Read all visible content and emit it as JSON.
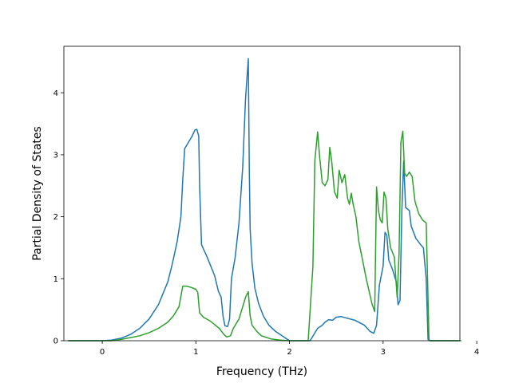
{
  "chart_data": {
    "type": "line",
    "title": "",
    "xlabel": "Frequency (THz)",
    "ylabel": "Partial Density of States",
    "xlim": [
      -0.41,
      3.82
    ],
    "ylim": [
      0,
      4.75
    ],
    "xticks": [
      0,
      1,
      2,
      3,
      4
    ],
    "yticks": [
      0,
      1,
      2,
      3,
      4
    ],
    "grid": false,
    "legend": "none",
    "series": [
      {
        "color": "#1f77b4",
        "points": [
          [
            -0.36,
            0
          ],
          [
            0.0,
            0
          ],
          [
            0.1,
            0.01
          ],
          [
            0.2,
            0.04
          ],
          [
            0.3,
            0.1
          ],
          [
            0.4,
            0.2
          ],
          [
            0.5,
            0.35
          ],
          [
            0.6,
            0.58
          ],
          [
            0.7,
            0.95
          ],
          [
            0.75,
            1.25
          ],
          [
            0.8,
            1.6
          ],
          [
            0.84,
            2.0
          ],
          [
            0.86,
            2.6
          ],
          [
            0.88,
            3.1
          ],
          [
            0.92,
            3.2
          ],
          [
            0.96,
            3.3
          ],
          [
            0.99,
            3.4
          ],
          [
            1.01,
            3.41
          ],
          [
            1.03,
            3.3
          ],
          [
            1.04,
            2.5
          ],
          [
            1.06,
            1.55
          ],
          [
            1.09,
            1.45
          ],
          [
            1.12,
            1.35
          ],
          [
            1.16,
            1.2
          ],
          [
            1.2,
            1.05
          ],
          [
            1.24,
            0.8
          ],
          [
            1.27,
            0.7
          ],
          [
            1.29,
            0.4
          ],
          [
            1.31,
            0.24
          ],
          [
            1.34,
            0.23
          ],
          [
            1.36,
            0.35
          ],
          [
            1.38,
            1.0
          ],
          [
            1.42,
            1.35
          ],
          [
            1.46,
            1.9
          ],
          [
            1.5,
            2.8
          ],
          [
            1.53,
            3.9
          ],
          [
            1.56,
            4.55
          ],
          [
            1.57,
            2.8
          ],
          [
            1.58,
            1.8
          ],
          [
            1.6,
            1.25
          ],
          [
            1.63,
            0.85
          ],
          [
            1.67,
            0.6
          ],
          [
            1.72,
            0.4
          ],
          [
            1.78,
            0.25
          ],
          [
            1.85,
            0.15
          ],
          [
            1.92,
            0.08
          ],
          [
            1.97,
            0.03
          ],
          [
            2.0,
            0
          ],
          [
            2.22,
            0
          ],
          [
            2.26,
            0.1
          ],
          [
            2.3,
            0.2
          ],
          [
            2.35,
            0.25
          ],
          [
            2.38,
            0.3
          ],
          [
            2.42,
            0.34
          ],
          [
            2.46,
            0.33
          ],
          [
            2.5,
            0.38
          ],
          [
            2.55,
            0.39
          ],
          [
            2.6,
            0.37
          ],
          [
            2.7,
            0.33
          ],
          [
            2.8,
            0.25
          ],
          [
            2.86,
            0.15
          ],
          [
            2.9,
            0.12
          ],
          [
            2.93,
            0.25
          ],
          [
            2.96,
            0.9
          ],
          [
            3.0,
            1.2
          ],
          [
            3.02,
            1.75
          ],
          [
            3.04,
            1.7
          ],
          [
            3.06,
            1.3
          ],
          [
            3.1,
            1.15
          ],
          [
            3.14,
            0.95
          ],
          [
            3.16,
            0.58
          ],
          [
            3.18,
            0.65
          ],
          [
            3.2,
            2.1
          ],
          [
            3.22,
            2.9
          ],
          [
            3.24,
            2.15
          ],
          [
            3.28,
            2.1
          ],
          [
            3.3,
            1.85
          ],
          [
            3.35,
            1.65
          ],
          [
            3.4,
            1.55
          ],
          [
            3.43,
            1.5
          ],
          [
            3.46,
            1.0
          ],
          [
            3.48,
            0.02
          ],
          [
            3.5,
            0
          ],
          [
            3.8,
            0
          ]
        ]
      },
      {
        "color": "#2ca02c",
        "points": [
          [
            -0.36,
            0
          ],
          [
            0.1,
            0
          ],
          [
            0.2,
            0.02
          ],
          [
            0.3,
            0.05
          ],
          [
            0.4,
            0.08
          ],
          [
            0.5,
            0.13
          ],
          [
            0.6,
            0.2
          ],
          [
            0.7,
            0.3
          ],
          [
            0.76,
            0.4
          ],
          [
            0.82,
            0.55
          ],
          [
            0.86,
            0.88
          ],
          [
            0.9,
            0.88
          ],
          [
            0.95,
            0.86
          ],
          [
            1.0,
            0.83
          ],
          [
            1.02,
            0.78
          ],
          [
            1.04,
            0.45
          ],
          [
            1.08,
            0.38
          ],
          [
            1.15,
            0.32
          ],
          [
            1.2,
            0.26
          ],
          [
            1.25,
            0.2
          ],
          [
            1.3,
            0.1
          ],
          [
            1.33,
            0.06
          ],
          [
            1.37,
            0.08
          ],
          [
            1.4,
            0.2
          ],
          [
            1.46,
            0.35
          ],
          [
            1.5,
            0.55
          ],
          [
            1.53,
            0.7
          ],
          [
            1.56,
            0.79
          ],
          [
            1.58,
            0.4
          ],
          [
            1.6,
            0.25
          ],
          [
            1.65,
            0.15
          ],
          [
            1.7,
            0.08
          ],
          [
            1.8,
            0.03
          ],
          [
            1.9,
            0.01
          ],
          [
            2.0,
            0
          ],
          [
            2.2,
            0
          ],
          [
            2.25,
            1.2
          ],
          [
            2.27,
            2.9
          ],
          [
            2.3,
            3.37
          ],
          [
            2.32,
            3.0
          ],
          [
            2.35,
            2.55
          ],
          [
            2.38,
            2.5
          ],
          [
            2.41,
            2.6
          ],
          [
            2.43,
            3.12
          ],
          [
            2.45,
            2.9
          ],
          [
            2.48,
            2.4
          ],
          [
            2.51,
            2.3
          ],
          [
            2.53,
            2.75
          ],
          [
            2.56,
            2.55
          ],
          [
            2.59,
            2.68
          ],
          [
            2.62,
            2.3
          ],
          [
            2.64,
            2.2
          ],
          [
            2.66,
            2.38
          ],
          [
            2.68,
            2.2
          ],
          [
            2.71,
            2.0
          ],
          [
            2.74,
            1.6
          ],
          [
            2.78,
            1.3
          ],
          [
            2.82,
            1.0
          ],
          [
            2.85,
            0.8
          ],
          [
            2.88,
            0.6
          ],
          [
            2.91,
            0.47
          ],
          [
            2.93,
            2.48
          ],
          [
            2.95,
            2.1
          ],
          [
            2.97,
            1.95
          ],
          [
            2.99,
            1.9
          ],
          [
            3.01,
            2.4
          ],
          [
            3.03,
            2.3
          ],
          [
            3.05,
            1.8
          ],
          [
            3.08,
            1.5
          ],
          [
            3.12,
            1.35
          ],
          [
            3.15,
            0.7
          ],
          [
            3.17,
            1.4
          ],
          [
            3.19,
            3.2
          ],
          [
            3.21,
            3.38
          ],
          [
            3.23,
            2.7
          ],
          [
            3.25,
            2.65
          ],
          [
            3.28,
            2.72
          ],
          [
            3.31,
            2.65
          ],
          [
            3.34,
            2.25
          ],
          [
            3.38,
            2.05
          ],
          [
            3.42,
            1.95
          ],
          [
            3.46,
            1.9
          ],
          [
            3.49,
            0.02
          ],
          [
            3.5,
            0
          ],
          [
            3.83,
            0
          ]
        ]
      }
    ]
  }
}
